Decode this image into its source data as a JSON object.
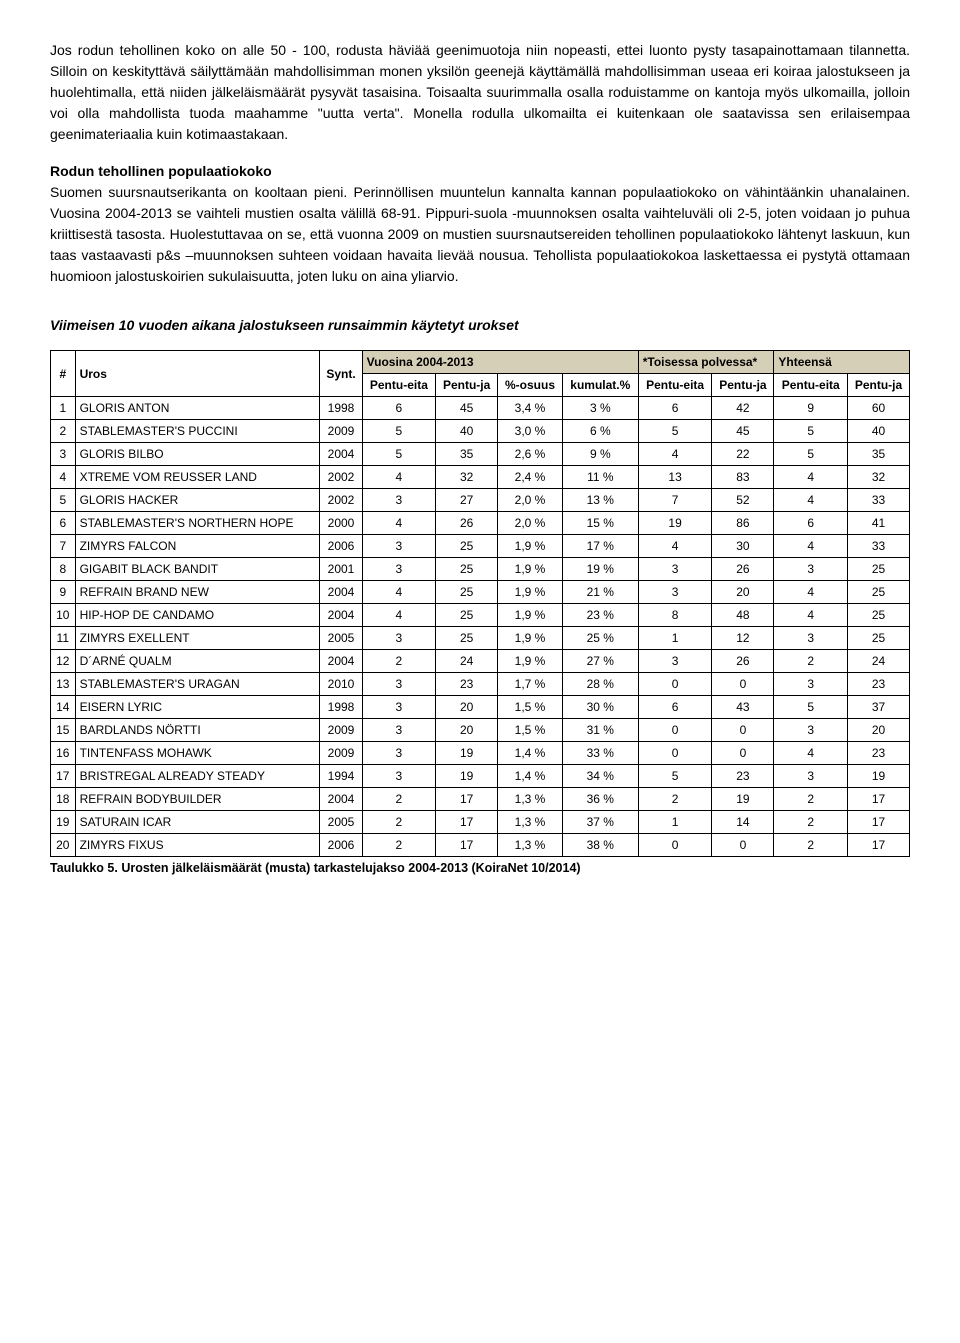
{
  "para1": "Jos rodun tehollinen koko on alle 50 - 100, rodusta häviää geenimuotoja niin nopeasti, ettei luonto pysty tasapainottamaan tilannetta. Silloin on keskityttävä säilyttämään mahdollisimman monen yksilön geenejä käyttämällä mahdollisimman useaa eri koiraa jalostukseen ja huolehtimalla, että niiden jälkeläismäärät pysyvät tasaisina. Toisaalta suurimmalla osalla roduistamme on kantoja myös ulkomailla, jolloin voi olla mahdollista tuoda maahamme \"uutta verta\". Monella rodulla ulkomailta ei kuitenkaan ole saatavissa sen erilaisempaa geenimateriaalia kuin kotimaastakaan.",
  "heading1": "Rodun tehollinen populaatiokoko",
  "para2": "Suomen suursnautserikanta on kooltaan pieni. Perinnöllisen muuntelun kannalta kannan populaatiokoko on vähintäänkin uhanalainen. Vuosina 2004-2013 se vaihteli mustien osalta välillä 68-91. Pippuri-suola -muunnoksen osalta vaihteluväli oli 2-5, joten voidaan jo puhua kriittisestä tasosta. Huolestuttavaa on se, että vuonna 2009 on mustien suursnautsereiden tehollinen populaatiokoko lähtenyt laskuun, kun taas vastaavasti p&s –muunnoksen suhteen voidaan havaita lievää nousua. Tehollista populaatiokokoa laskettaessa ei pystytä ottamaan huomioon jalostuskoirien sukulaisuutta, joten luku on aina yliarvio.",
  "heading2": "Viimeisen 10 vuoden aikana jalostukseen runsaimmin käytetyt urokset",
  "table": {
    "group_headers": [
      "Vuosina 2004-2013",
      "*Toisessa polvessa*",
      "Yhteensä"
    ],
    "cols": [
      "#",
      "Uros",
      "Synt.",
      "Pentu-eita",
      "Pentu-ja",
      "%-osuus",
      "kumulat.%",
      "Pentu-eita",
      "Pentu-ja",
      "Pentu-eita",
      "Pentu-ja"
    ],
    "rows": [
      [
        "1",
        "GLORIS ANTON",
        "1998",
        "6",
        "45",
        "3,4 %",
        "3 %",
        "6",
        "42",
        "9",
        "60"
      ],
      [
        "2",
        "STABLEMASTER'S PUCCINI",
        "2009",
        "5",
        "40",
        "3,0 %",
        "6 %",
        "5",
        "45",
        "5",
        "40"
      ],
      [
        "3",
        "GLORIS BILBO",
        "2004",
        "5",
        "35",
        "2,6 %",
        "9 %",
        "4",
        "22",
        "5",
        "35"
      ],
      [
        "4",
        "XTREME VOM REUSSER LAND",
        "2002",
        "4",
        "32",
        "2,4 %",
        "11 %",
        "13",
        "83",
        "4",
        "32"
      ],
      [
        "5",
        "GLORIS HACKER",
        "2002",
        "3",
        "27",
        "2,0 %",
        "13 %",
        "7",
        "52",
        "4",
        "33"
      ],
      [
        "6",
        "STABLEMASTER'S NORTHERN HOPE",
        "2000",
        "4",
        "26",
        "2,0 %",
        "15 %",
        "19",
        "86",
        "6",
        "41"
      ],
      [
        "7",
        "ZIMYRS FALCON",
        "2006",
        "3",
        "25",
        "1,9 %",
        "17 %",
        "4",
        "30",
        "4",
        "33"
      ],
      [
        "8",
        "GIGABIT BLACK BANDIT",
        "2001",
        "3",
        "25",
        "1,9 %",
        "19 %",
        "3",
        "26",
        "3",
        "25"
      ],
      [
        "9",
        "REFRAIN BRAND NEW",
        "2004",
        "4",
        "25",
        "1,9 %",
        "21 %",
        "3",
        "20",
        "4",
        "25"
      ],
      [
        "10",
        "HIP-HOP DE CANDAMO",
        "2004",
        "4",
        "25",
        "1,9 %",
        "23 %",
        "8",
        "48",
        "4",
        "25"
      ],
      [
        "11",
        "ZIMYRS EXELLENT",
        "2005",
        "3",
        "25",
        "1,9 %",
        "25 %",
        "1",
        "12",
        "3",
        "25"
      ],
      [
        "12",
        "D´ARNÉ QUALM",
        "2004",
        "2",
        "24",
        "1,9 %",
        "27 %",
        "3",
        "26",
        "2",
        "24"
      ],
      [
        "13",
        "STABLEMASTER'S URAGAN",
        "2010",
        "3",
        "23",
        "1,7 %",
        "28 %",
        "0",
        "0",
        "3",
        "23"
      ],
      [
        "14",
        "EISERN LYRIC",
        "1998",
        "3",
        "20",
        "1,5 %",
        "30 %",
        "6",
        "43",
        "5",
        "37"
      ],
      [
        "15",
        "BARDLANDS NÖRTTI",
        "2009",
        "3",
        "20",
        "1,5 %",
        "31 %",
        "0",
        "0",
        "3",
        "20"
      ],
      [
        "16",
        "TINTENFASS MOHAWK",
        "2009",
        "3",
        "19",
        "1,4 %",
        "33 %",
        "0",
        "0",
        "4",
        "23"
      ],
      [
        "17",
        "BRISTREGAL ALREADY STEADY",
        "1994",
        "3",
        "19",
        "1,4 %",
        "34 %",
        "5",
        "23",
        "3",
        "19"
      ],
      [
        "18",
        "REFRAIN BODYBUILDER",
        "2004",
        "2",
        "17",
        "1,3 %",
        "36 %",
        "2",
        "19",
        "2",
        "17"
      ],
      [
        "19",
        "SATURAIN ICAR",
        "2005",
        "2",
        "17",
        "1,3 %",
        "37 %",
        "1",
        "14",
        "2",
        "17"
      ],
      [
        "20",
        "ZIMYRS FIXUS",
        "2006",
        "2",
        "17",
        "1,3 %",
        "38 %",
        "0",
        "0",
        "2",
        "17"
      ]
    ]
  },
  "caption": "Taulukko 5. Urosten jälkeläismäärät (musta) tarkastelujakso 2004-2013 (KoiraNet 10/2014)"
}
